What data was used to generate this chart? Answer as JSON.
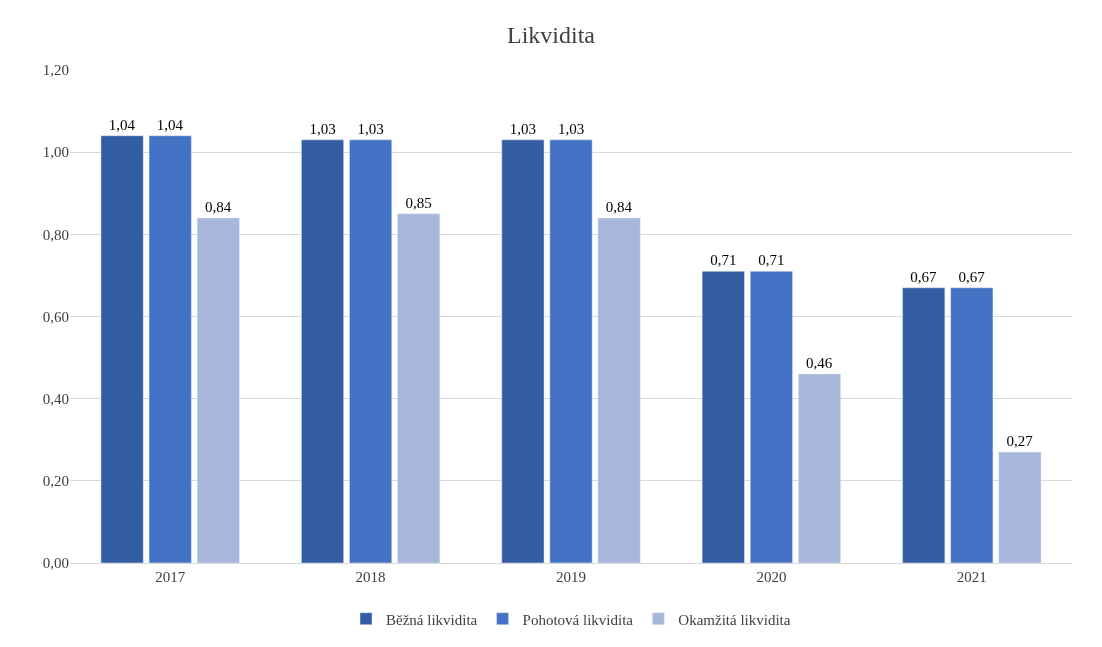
{
  "chart_data": {
    "type": "bar",
    "title": "Likvidita",
    "categories": [
      "2017",
      "2018",
      "2019",
      "2020",
      "2021"
    ],
    "series": [
      {
        "name": "Běžná likvidita",
        "color": "#335da3",
        "values": [
          1.04,
          1.03,
          1.03,
          0.71,
          0.67
        ],
        "value_labels": [
          "1,04",
          "1,03",
          "1,03",
          "0,71",
          "0,67"
        ]
      },
      {
        "name": "Pohotová likvidita",
        "color": "#4472c4",
        "values": [
          1.04,
          1.03,
          1.03,
          0.71,
          0.67
        ],
        "value_labels": [
          "1,04",
          "1,03",
          "1,03",
          "0,71",
          "0,67"
        ]
      },
      {
        "name": "Okamžitá likvidita",
        "color": "#a9b6db",
        "values": [
          0.84,
          0.85,
          0.84,
          0.46,
          0.27
        ],
        "value_labels": [
          "0,84",
          "0,85",
          "0,84",
          "0,46",
          "0,27"
        ]
      }
    ],
    "ylim": [
      0,
      1.2
    ],
    "yticks": [
      {
        "value": 0,
        "label": "0,00"
      },
      {
        "value": 0.2,
        "label": "0,20"
      },
      {
        "value": 0.4,
        "label": "0,40"
      },
      {
        "value": 0.6,
        "label": "0,60"
      },
      {
        "value": 0.8,
        "label": "0,80"
      },
      {
        "value": 1.0,
        "label": "1,00"
      },
      {
        "value": 1.2,
        "label": "1,20"
      }
    ],
    "grid": "y",
    "legend": "bottom"
  }
}
